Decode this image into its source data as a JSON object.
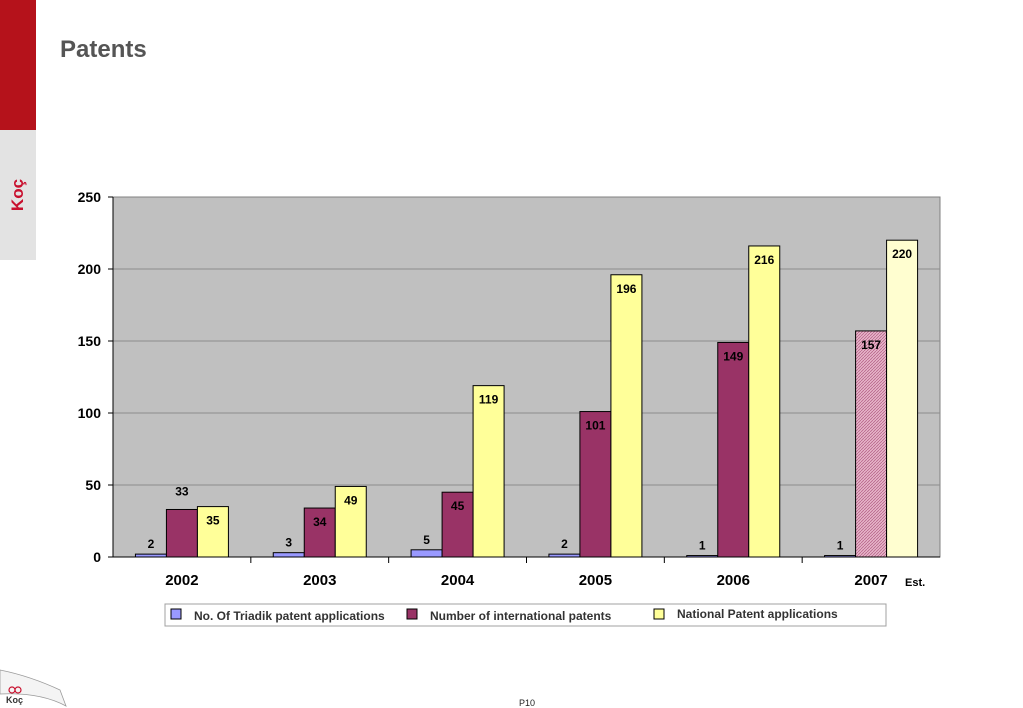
{
  "page": {
    "title": "Patents",
    "page_number": "P10",
    "brand": "Koç"
  },
  "colors": {
    "series_triadik": "#9999ff",
    "series_international": "#993366",
    "series_national": "#ffff99",
    "plot_background": "#c0c0c0",
    "brand_red": "#b5121b"
  },
  "icons": {
    "side_logo": "koc-logo-icon",
    "footer_logo": "koc-logo-icon"
  },
  "chart_data": {
    "type": "bar",
    "title": "",
    "xlabel": "",
    "ylabel": "",
    "categories": [
      "2002",
      "2003",
      "2004",
      "2005",
      "2006",
      "2007"
    ],
    "annotations": [
      {
        "category": "2007",
        "text": "Est."
      }
    ],
    "series": [
      {
        "name": "No. Of Triadik patent applications",
        "values": [
          2,
          3,
          5,
          2,
          1,
          1
        ]
      },
      {
        "name": "Number of international patents",
        "values": [
          33,
          34,
          45,
          101,
          149,
          157
        ]
      },
      {
        "name": "National  Patent applications",
        "values": [
          35,
          49,
          119,
          196,
          216,
          220
        ]
      }
    ],
    "estimated_category": "2007",
    "ylim": [
      0,
      250
    ],
    "yticks": [
      "0",
      "50",
      "100",
      "150",
      "200",
      "250"
    ],
    "grid": true,
    "legend_position": "bottom"
  }
}
